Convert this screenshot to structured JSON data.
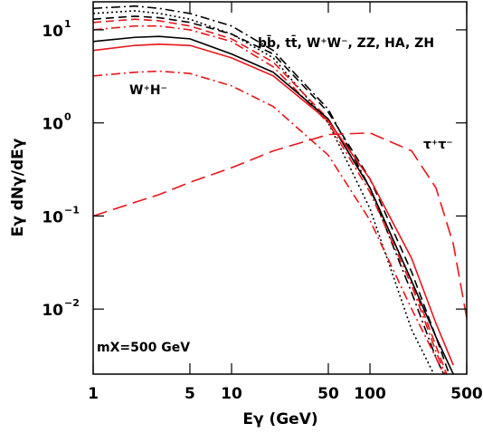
{
  "chart_data": {
    "type": "line",
    "x_label": "Eγ (GeV)",
    "y_label": "Eγ dNγ/dEγ",
    "annotations": [
      "bb̄, tt̄, W⁺W⁻, ZZ, HA, ZH",
      "W⁺H⁻",
      "τ⁺τ⁻",
      "mX=500 GeV"
    ],
    "x_scale": "log",
    "y_scale": "log",
    "xlim": [
      1,
      500
    ],
    "ylim": [
      0.002,
      20
    ],
    "xticks": [
      1,
      5,
      10,
      50,
      100,
      500
    ],
    "yticks": [
      {
        "value": 10,
        "label": "10",
        "exponent": "1"
      },
      {
        "value": 1,
        "label": "10",
        "exponent": "0"
      },
      {
        "value": 0.1,
        "label": "10",
        "exponent": "−1"
      },
      {
        "value": 0.01,
        "label": "10",
        "exponent": "−2"
      }
    ],
    "x": [
      1,
      2,
      3,
      5,
      10,
      20,
      50,
      100,
      200,
      300,
      400,
      500
    ],
    "series": [
      {
        "color": "#000000",
        "dash": "dashdot",
        "values": [
          17,
          18,
          17,
          15,
          11,
          6,
          1.4,
          0.2,
          0.015,
          0.003,
          0.0012,
          null
        ]
      },
      {
        "color": "#000000",
        "dash": "dotted",
        "values": [
          15,
          16,
          15,
          13,
          9,
          5,
          1.0,
          0.12,
          0.006,
          0.0018,
          null,
          null
        ]
      },
      {
        "color": "#000000",
        "dash": "dashed",
        "values": [
          13,
          14,
          13.5,
          12,
          9,
          5.5,
          1.3,
          0.25,
          0.025,
          0.005,
          0.0015,
          null
        ]
      },
      {
        "color": "#e8161b",
        "dash": "dashed",
        "values": [
          12,
          13,
          12.5,
          11,
          8,
          4.5,
          1.1,
          0.2,
          0.02,
          0.004,
          0.0013,
          null
        ]
      },
      {
        "color": "#e8161b",
        "dash": "dashdot",
        "values": [
          10,
          11,
          11,
          10,
          7.5,
          4,
          1.0,
          0.18,
          0.018,
          0.0035,
          0.0012,
          null
        ]
      },
      {
        "color": "#000000",
        "dash": "solid",
        "values": [
          7.5,
          8.3,
          8.5,
          8,
          5.5,
          3.5,
          1.1,
          0.2,
          0.02,
          0.005,
          0.002,
          null
        ]
      },
      {
        "color": "#e8161b",
        "dash": "solid",
        "values": [
          6,
          6.8,
          7,
          6.8,
          5,
          3.2,
          1.05,
          0.25,
          0.035,
          0.007,
          0.0025,
          null
        ]
      },
      {
        "color": "#e8161b",
        "dash": "dashdot",
        "values": [
          3.2,
          3.5,
          3.6,
          3.4,
          2.5,
          1.5,
          0.45,
          0.09,
          0.01,
          0.003,
          0.0012,
          null
        ]
      },
      {
        "color": "#e8161b",
        "dash": "longdash",
        "values": [
          0.1,
          0.14,
          0.17,
          0.23,
          0.33,
          0.5,
          0.75,
          0.78,
          0.5,
          0.2,
          0.05,
          0.008
        ]
      }
    ]
  }
}
